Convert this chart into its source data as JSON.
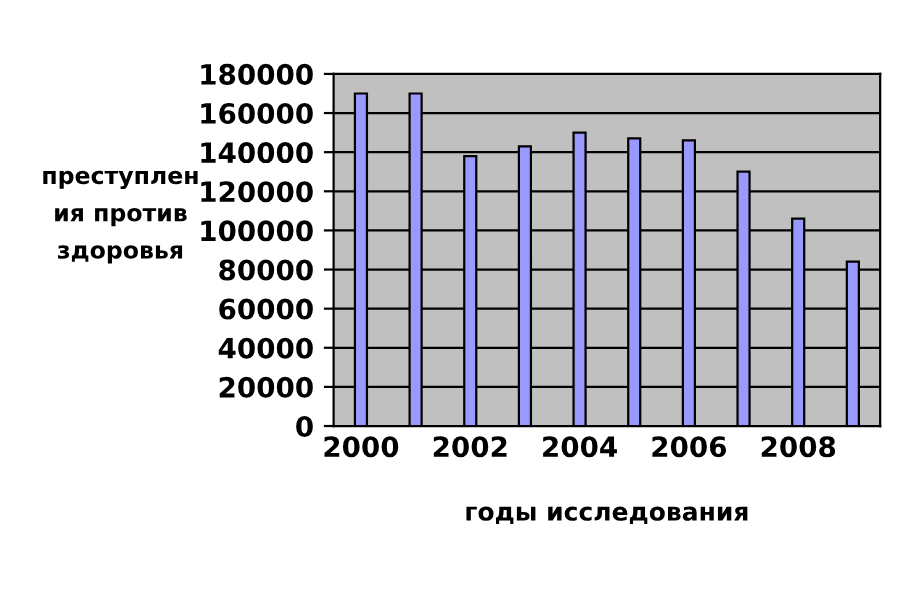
{
  "chart_data": {
    "type": "bar",
    "xlabel": "годы исследования",
    "ylabel": "преступлен\nия против\nздоровья",
    "categories": [
      "2000",
      null,
      "2002",
      null,
      "2004",
      null,
      "2006",
      null,
      "2008",
      null
    ],
    "series": [
      {
        "color": "#9999ff",
        "values": [
          170000,
          170000,
          138000,
          143000,
          150000,
          147000,
          146000,
          130000,
          106000,
          84000
        ]
      }
    ],
    "ylim": [
      0,
      180000
    ],
    "yticks": [
      0,
      20000,
      40000,
      60000,
      80000,
      100000,
      120000,
      140000,
      160000,
      180000
    ],
    "grid": "y"
  }
}
